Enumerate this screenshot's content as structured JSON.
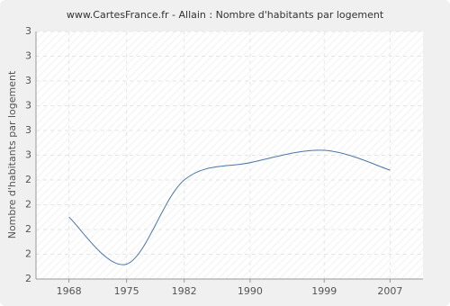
{
  "chart_data": {
    "type": "line",
    "title": "www.CartesFrance.fr - Allain : Nombre d'habitants par logement",
    "y_label": "Nombre d'habitants par logement",
    "x": [
      1968,
      1975,
      1982,
      1990,
      1999,
      2007
    ],
    "series": [
      {
        "name": "Nombre d'habitants par logement",
        "color": "#4a76a8",
        "values": [
          2.25,
          2.06,
          2.4,
          2.47,
          2.52,
          2.44
        ]
      }
    ],
    "xlim": [
      1964,
      2011
    ],
    "ylim": [
      2,
      3
    ],
    "yticks": [
      {
        "value": 2,
        "label": "2"
      },
      {
        "value": 2.1,
        "label": "2"
      },
      {
        "value": 2.2,
        "label": "2"
      },
      {
        "value": 2.3,
        "label": "2"
      },
      {
        "value": 2.4,
        "label": "2"
      },
      {
        "value": 2.5,
        "label": "3"
      },
      {
        "value": 2.6,
        "label": "3"
      },
      {
        "value": 2.7,
        "label": "3"
      },
      {
        "value": 2.8,
        "label": "3"
      },
      {
        "value": 2.9,
        "label": "3"
      },
      {
        "value": 3,
        "label": "3"
      }
    ],
    "grid": true
  }
}
